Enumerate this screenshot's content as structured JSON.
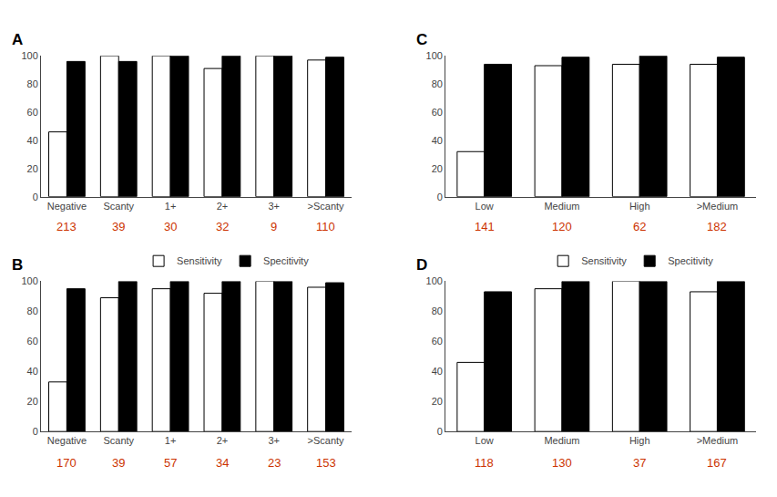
{
  "chart_data": [
    {
      "type": "bar",
      "title": "A",
      "categories": [
        "Negative",
        "Scanty",
        "1+",
        "2+",
        "3+",
        ">Scanty"
      ],
      "series": [
        {
          "name": "Sensitivity",
          "color": "white",
          "values": [
            46,
            100,
            100,
            91,
            100,
            97
          ]
        },
        {
          "name": "Specitivity",
          "color": "black",
          "values": [
            96,
            96,
            100,
            100,
            100,
            99
          ]
        }
      ],
      "annotations": [
        {
          "text": "213",
          "color": "#cc3300"
        },
        {
          "text": "39",
          "color": "#cc3300"
        },
        {
          "text": "30",
          "color": "#cc3300"
        },
        {
          "text": "32",
          "color": "#cc3300"
        },
        {
          "text": "9",
          "color": "#cc3300"
        },
        {
          "text": "110",
          "color": "#cc3300"
        }
      ],
      "ylim": [
        0,
        100
      ],
      "yticks": [
        0,
        20,
        40,
        60,
        80,
        100
      ],
      "grid": false
    },
    {
      "type": "bar",
      "title": "B",
      "categories": [
        "Negative",
        "Scanty",
        "1+",
        "2+",
        "3+",
        ">Scanty"
      ],
      "series": [
        {
          "name": "Sensitivity",
          "color": "white",
          "values": [
            33,
            89,
            95,
            92,
            100,
            96
          ]
        },
        {
          "name": "Specitivity",
          "color": "black",
          "values": [
            95,
            100,
            100,
            100,
            100,
            99
          ]
        }
      ],
      "annotations": [
        {
          "text": "170",
          "color": "#cc3300"
        },
        {
          "text": "39",
          "color": "#cc3300"
        },
        {
          "text": "57",
          "color": "#cc3300"
        },
        {
          "text": "34",
          "color": "#cc3300"
        },
        {
          "text": "23",
          "color": "#cc3300"
        },
        {
          "text": "153",
          "color": "#cc3300"
        }
      ],
      "ylim": [
        0,
        100
      ],
      "yticks": [
        0,
        20,
        40,
        60,
        80,
        100
      ],
      "grid": false,
      "legend": "upper center"
    },
    {
      "type": "bar",
      "title": "C",
      "categories": [
        "Low",
        "Medium",
        "High",
        ">Medium"
      ],
      "series": [
        {
          "name": "Sensitivity",
          "color": "white",
          "values": [
            32,
            93,
            94,
            94
          ]
        },
        {
          "name": "Specitivity",
          "color": "black",
          "values": [
            94,
            99,
            100,
            99
          ]
        }
      ],
      "annotations": [
        {
          "text": "141",
          "color": "#cc3300"
        },
        {
          "text": "120",
          "color": "#cc3300"
        },
        {
          "text": "62",
          "color": "#cc3300"
        },
        {
          "text": "182",
          "color": "#cc3300"
        }
      ],
      "ylim": [
        0,
        100
      ],
      "yticks": [
        0,
        20,
        40,
        60,
        80,
        100
      ],
      "grid": false
    },
    {
      "type": "bar",
      "title": "D",
      "categories": [
        "Low",
        "Medium",
        "High",
        ">Medium"
      ],
      "series": [
        {
          "name": "Sensitivity",
          "color": "white",
          "values": [
            46,
            95,
            100,
            93
          ]
        },
        {
          "name": "Specitivity",
          "color": "black",
          "values": [
            93,
            100,
            100,
            100
          ]
        }
      ],
      "annotations": [
        {
          "text": "118",
          "color": "#cc3300"
        },
        {
          "text": "130",
          "color": "#cc3300"
        },
        {
          "text": "37",
          "color": "#cc3300"
        },
        {
          "text": "167",
          "color": "#cc3300"
        }
      ],
      "ylim": [
        0,
        100
      ],
      "yticks": [
        0,
        20,
        40,
        60,
        80,
        100
      ],
      "grid": false,
      "legend": "upper center"
    }
  ]
}
